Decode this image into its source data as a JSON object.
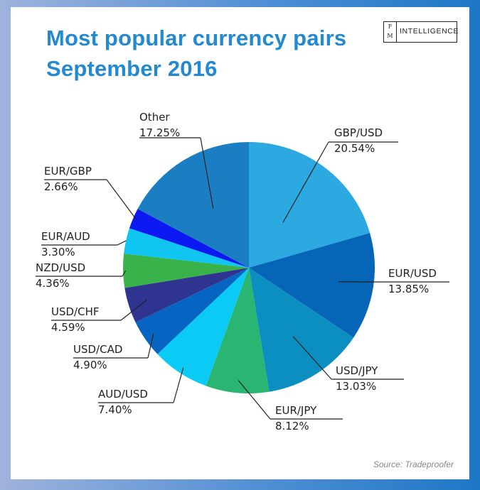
{
  "title_line1": "Most popular currency pairs",
  "title_line2": "September 2016",
  "logo": {
    "mark_top": "F",
    "mark_bottom": "M",
    "word": "INTELLIGENCE"
  },
  "source": "Source: Tradeproofer",
  "chart_data": {
    "type": "pie",
    "title": "Most popular currency pairs September 2016",
    "unit": "%",
    "slices": [
      {
        "label": "GBP/USD",
        "value": 20.54,
        "display": "20.54%",
        "color": "#2ca9e1"
      },
      {
        "label": "EUR/USD",
        "value": 13.85,
        "display": "13.85%",
        "color": "#0765b8"
      },
      {
        "label": "USD/JPY",
        "value": 13.03,
        "display": "13.03%",
        "color": "#0b8fc0"
      },
      {
        "label": "EUR/JPY",
        "value": 8.12,
        "display": "8.12%",
        "color": "#2bb572"
      },
      {
        "label": "AUD/USD",
        "value": 7.4,
        "display": "7.40%",
        "color": "#0ccaf6"
      },
      {
        "label": "USD/CAD",
        "value": 4.9,
        "display": "4.90%",
        "color": "#0665c2"
      },
      {
        "label": "USD/CHF",
        "value": 4.59,
        "display": "4.59%",
        "color": "#2f3490"
      },
      {
        "label": "NZD/USD",
        "value": 4.36,
        "display": "4.36%",
        "color": "#39b24a"
      },
      {
        "label": "EUR/AUD",
        "value": 3.3,
        "display": "3.30%",
        "color": "#10c5f1"
      },
      {
        "label": "EUR/GBP",
        "value": 2.66,
        "display": "2.66%",
        "color": "#0d19f2"
      },
      {
        "label": "Other",
        "value": 17.25,
        "display": "17.25%",
        "color": "#1b7ec2"
      }
    ]
  }
}
